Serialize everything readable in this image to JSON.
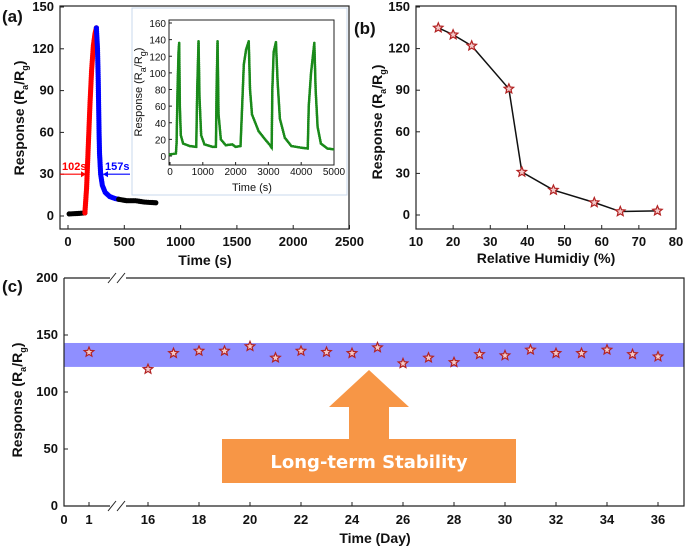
{
  "chart_data": [
    {
      "panel_label": "(a)",
      "type": "scatter",
      "xlabel": "Time (s)",
      "ylabel_parts": [
        "Response (R",
        "a",
        "/R",
        "g",
        ")"
      ],
      "xlim": [
        0,
        2500
      ],
      "ylim": [
        0,
        150
      ],
      "xticks": [
        0,
        500,
        1000,
        1500,
        2000,
        2500
      ],
      "yticks": [
        0,
        30,
        60,
        90,
        120,
        150
      ],
      "series": [
        {
          "color": "#000000",
          "points": [
            [
              10,
              1.5
            ],
            [
              80,
              1.8
            ],
            [
              150,
              2.2
            ]
          ]
        },
        {
          "color": "#ff0000",
          "points": [
            [
              150,
              2.2
            ],
            [
              165,
              20
            ],
            [
              180,
              50
            ],
            [
              195,
              80
            ],
            [
              210,
              105
            ],
            [
              225,
              122
            ],
            [
              240,
              131
            ],
            [
              252,
              135
            ]
          ]
        },
        {
          "color": "#0000ff",
          "points": [
            [
              252,
              135
            ],
            [
              262,
              120
            ],
            [
              268,
              100
            ],
            [
              272,
              80
            ],
            [
              276,
              60
            ],
            [
              280,
              45
            ],
            [
              290,
              30
            ],
            [
              305,
              22
            ],
            [
              330,
              17
            ],
            [
              370,
              14
            ],
            [
              420,
              12.5
            ],
            [
              450,
              12
            ]
          ]
        },
        {
          "color": "#000000",
          "points": [
            [
              450,
              12
            ],
            [
              520,
              11
            ],
            [
              600,
              11
            ],
            [
              680,
              10
            ],
            [
              780,
              9.5
            ]
          ]
        }
      ],
      "annotations": [
        {
          "text": "102s",
          "color": "#ff0000",
          "y": 30
        },
        {
          "text": "157s",
          "color": "#0000ff",
          "y": 30
        }
      ],
      "inset": {
        "type": "line",
        "xlabel": "Time (s)",
        "ylabel_parts": [
          "Response (R",
          "a",
          "/R",
          "g",
          ")"
        ],
        "xlim": [
          0,
          5000
        ],
        "ylim": [
          0,
          160
        ],
        "xticks": [
          0,
          1000,
          2000,
          3000,
          4000,
          5000
        ],
        "yticks": [
          0,
          20,
          40,
          60,
          80,
          100,
          120,
          140,
          160
        ],
        "color": "#1a8a1a",
        "points": [
          [
            0,
            2
          ],
          [
            180,
            3
          ],
          [
            200,
            15
          ],
          [
            230,
            80
          ],
          [
            260,
            125
          ],
          [
            280,
            136
          ],
          [
            300,
            60
          ],
          [
            330,
            25
          ],
          [
            400,
            15
          ],
          [
            600,
            12
          ],
          [
            800,
            11
          ],
          [
            830,
            80
          ],
          [
            870,
            138
          ],
          [
            900,
            70
          ],
          [
            950,
            25
          ],
          [
            1050,
            14
          ],
          [
            1300,
            11
          ],
          [
            1400,
            11
          ],
          [
            1420,
            80
          ],
          [
            1450,
            138
          ],
          [
            1480,
            50
          ],
          [
            1550,
            20
          ],
          [
            1700,
            13
          ],
          [
            1900,
            14
          ],
          [
            2000,
            11
          ],
          [
            2150,
            12
          ],
          [
            2200,
            60
          ],
          [
            2250,
            110
          ],
          [
            2320,
            128
          ],
          [
            2400,
            138
          ],
          [
            2440,
            80
          ],
          [
            2500,
            50
          ],
          [
            2700,
            30
          ],
          [
            2900,
            20
          ],
          [
            3050,
            13
          ],
          [
            3100,
            10
          ],
          [
            3120,
            80
          ],
          [
            3160,
            125
          ],
          [
            3230,
            137
          ],
          [
            3280,
            90
          ],
          [
            3350,
            45
          ],
          [
            3500,
            22
          ],
          [
            3700,
            12
          ],
          [
            4000,
            10
          ],
          [
            4200,
            9
          ],
          [
            4230,
            60
          ],
          [
            4300,
            100
          ],
          [
            4400,
            136
          ],
          [
            4440,
            80
          ],
          [
            4500,
            35
          ],
          [
            4600,
            15
          ],
          [
            4800,
            9
          ],
          [
            5000,
            8
          ]
        ]
      }
    },
    {
      "panel_label": "(b)",
      "type": "line",
      "xlabel": "Relative Humidiy (%)",
      "ylabel_parts": [
        "Response (R",
        "a",
        "/R",
        "g",
        ")"
      ],
      "xlim": [
        10,
        80
      ],
      "ylim": [
        0,
        150
      ],
      "xticks": [
        10,
        20,
        30,
        40,
        50,
        60,
        70,
        80
      ],
      "yticks": [
        0,
        30,
        60,
        90,
        120,
        150
      ],
      "marker": "star",
      "marker_color": "#b22222",
      "x": [
        16,
        20,
        25,
        35,
        38.5,
        47,
        58,
        65,
        75
      ],
      "y": [
        135,
        130,
        122,
        91,
        31,
        18,
        9,
        2.5,
        3
      ]
    },
    {
      "panel_label": "(c)",
      "type": "scatter",
      "xlabel": "Time (Day)",
      "ylabel_parts": [
        "Response (R",
        "a",
        "/R",
        "g",
        ")"
      ],
      "ylim": [
        0,
        200
      ],
      "yticks": [
        0,
        50,
        100,
        150,
        200
      ],
      "xticks": [
        0,
        1,
        16,
        18,
        20,
        22,
        24,
        26,
        28,
        30,
        32,
        34,
        36
      ],
      "axis_break": [
        1,
        16
      ],
      "marker": "star",
      "marker_color": "#b22222",
      "x": [
        1,
        16,
        17,
        18,
        19,
        20,
        21,
        22,
        23,
        24,
        25,
        26,
        27,
        28,
        29,
        30,
        31,
        32,
        33,
        34,
        35,
        36
      ],
      "y": [
        135,
        120,
        134,
        136,
        136,
        140,
        130,
        136,
        135,
        134,
        139,
        125,
        130,
        126,
        133,
        132,
        137,
        134,
        134,
        137,
        133,
        131
      ],
      "band": {
        "range": [
          122,
          143
        ],
        "color": "#8f8fff"
      },
      "banner": {
        "text": "Long-term Stability",
        "color": "#f79646"
      }
    }
  ]
}
